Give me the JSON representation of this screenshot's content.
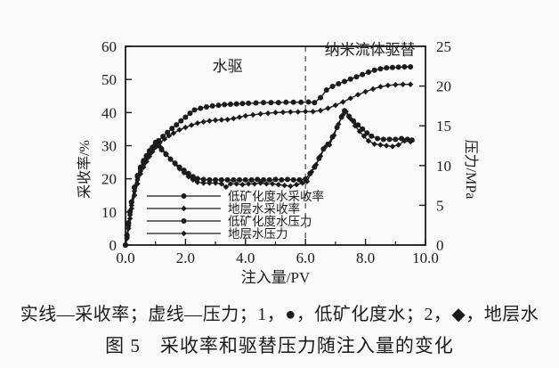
{
  "figure": {
    "note": "实线—采收率；虚线—压力；1，●，低矿化度水；2，◆，地层水",
    "title": "图 5　采收率和驱替压力随注入量的变化"
  },
  "chart_data": {
    "type": "line",
    "title": "",
    "xlabel": "注入量/PV",
    "ylabel_left": "采收率/%",
    "ylabel_right": "压力/MPa",
    "xlim": [
      0,
      10
    ],
    "xtick_values": [
      0,
      2,
      4,
      6,
      8,
      10
    ],
    "xtick_labels": [
      "0.0",
      "2.0",
      "4.0",
      "6.0",
      "8.0",
      "10.0"
    ],
    "xtick_minor": [
      1,
      3,
      5,
      7,
      9
    ],
    "ylim_left": [
      0,
      60
    ],
    "ytick_left": [
      0,
      10,
      20,
      30,
      40,
      50,
      60
    ],
    "ylim_right": [
      0,
      25
    ],
    "ytick_right": [
      0,
      5,
      10,
      15,
      20,
      25
    ],
    "grid": false,
    "ink_color": "#1b1b1b",
    "divider": {
      "x": 6.0,
      "style": "dashed"
    },
    "annotations": [
      {
        "key": "water-flooding",
        "text": "水驱",
        "x": 3.4,
        "y": 52.5
      },
      {
        "key": "nanofluid-displacement",
        "text": "纳米流体驱替",
        "x": 8.15,
        "y": 57.5
      }
    ],
    "legend_position": "inside-lower-left",
    "series": [
      {
        "key": "low-salinity-water-recovery",
        "name": "低矿化度水采收率",
        "axis": "left",
        "marker": "circle",
        "marker_size": 3,
        "x": [
          0,
          0.05,
          0.1,
          0.15,
          0.2,
          0.3,
          0.4,
          0.5,
          0.6,
          0.7,
          0.8,
          0.9,
          1.0,
          1.1,
          1.25,
          1.4,
          1.55,
          1.7,
          1.85,
          2.0,
          2.15,
          2.3,
          2.5,
          2.7,
          2.9,
          3.1,
          3.3,
          3.5,
          3.7,
          3.9,
          4.1,
          4.35,
          4.6,
          4.85,
          5.1,
          5.35,
          5.6,
          5.85,
          6.1,
          6.3,
          6.5,
          6.7,
          6.9,
          7.1,
          7.3,
          7.5,
          7.7,
          7.9,
          8.1,
          8.3,
          8.5,
          8.7,
          8.9,
          9.1,
          9.3,
          9.5
        ],
        "y": [
          0,
          3,
          6.5,
          10,
          13,
          17.5,
          21,
          23.5,
          25.5,
          27,
          28.5,
          29.5,
          30.5,
          31.5,
          32.8,
          34,
          35.2,
          36.3,
          37.5,
          38.6,
          39.8,
          40.8,
          41.3,
          41.7,
          42,
          42.2,
          42.4,
          42.5,
          42.6,
          42.7,
          42.8,
          42.9,
          43,
          43,
          43,
          43.1,
          43.1,
          43.1,
          43.2,
          43,
          44.5,
          46.8,
          47.9,
          48.7,
          49.4,
          50.1,
          50.8,
          51.5,
          52.2,
          52.8,
          53.2,
          53.5,
          53.6,
          53.7,
          53.8,
          53.8
        ]
      },
      {
        "key": "formation-water-recovery",
        "name": "地层水采收率",
        "axis": "left",
        "marker": "diamond",
        "marker_size": 2.8,
        "x": [
          0,
          0.05,
          0.1,
          0.15,
          0.2,
          0.3,
          0.4,
          0.5,
          0.6,
          0.7,
          0.8,
          0.9,
          1.0,
          1.15,
          1.3,
          1.45,
          1.6,
          1.8,
          2.0,
          2.2,
          2.4,
          2.6,
          2.8,
          3.0,
          3.2,
          3.4,
          3.6,
          3.8,
          4.0,
          4.25,
          4.5,
          4.75,
          5.0,
          5.25,
          5.5,
          5.75,
          6.0,
          6.25,
          6.5,
          6.75,
          7.0,
          7.25,
          7.5,
          7.75,
          8.0,
          8.25,
          8.5,
          8.75,
          9.0,
          9.25,
          9.5
        ],
        "y": [
          0,
          2,
          5,
          8,
          11,
          15,
          18.5,
          21.5,
          23.5,
          25.2,
          26.8,
          28.2,
          29.5,
          31,
          32,
          33,
          33.8,
          34.8,
          35.5,
          36.2,
          36.8,
          37.2,
          37.5,
          37.7,
          37.8,
          37.9,
          38.2,
          38.6,
          39,
          39.3,
          39.6,
          39.8,
          40,
          40.1,
          40.2,
          40.2,
          40.3,
          40.3,
          40.6,
          41.3,
          42.2,
          43.2,
          44.3,
          45.4,
          46.3,
          47.1,
          47.8,
          48.2,
          48.4,
          48.5,
          48.5
        ]
      },
      {
        "key": "low-salinity-water-pressure",
        "name": "低矿化度水压力",
        "axis": "right",
        "marker": "circle",
        "marker_size": 3,
        "x": [
          0,
          0.05,
          0.1,
          0.15,
          0.2,
          0.3,
          0.4,
          0.5,
          0.6,
          0.7,
          0.8,
          0.9,
          1.0,
          1.1,
          1.2,
          1.35,
          1.5,
          1.65,
          1.8,
          1.95,
          2.1,
          2.25,
          2.4,
          2.6,
          2.8,
          3.0,
          3.2,
          3.4,
          3.6,
          3.8,
          4.0,
          4.2,
          4.4,
          4.6,
          4.8,
          5.0,
          5.2,
          5.4,
          5.6,
          5.8,
          6.0,
          6.15,
          6.3,
          6.45,
          6.6,
          6.75,
          6.9,
          7.05,
          7.2,
          7.3,
          7.45,
          7.6,
          7.75,
          7.9,
          8.05,
          8.2,
          8.4,
          8.6,
          8.8,
          9.0,
          9.2,
          9.4,
          9.55
        ],
        "y": [
          0,
          1.2,
          2.8,
          4.2,
          5.4,
          7.2,
          8.6,
          9.6,
          10.4,
          11.1,
          11.7,
          12.3,
          12.9,
          12.5,
          12.0,
          11.4,
          10.8,
          10.3,
          9.8,
          9.4,
          9.0,
          8.6,
          8.35,
          8.25,
          8.2,
          8.2,
          8.2,
          8.2,
          8.2,
          8.2,
          8.2,
          8.2,
          8.25,
          8.2,
          8.2,
          8.25,
          8.2,
          8.25,
          8.2,
          8.2,
          8.3,
          9.0,
          9.8,
          10.9,
          12.1,
          12.7,
          13.6,
          14.8,
          16.1,
          16.9,
          16.2,
          15.6,
          15.1,
          14.6,
          14.1,
          13.7,
          13.4,
          13.3,
          13.3,
          13.3,
          13.4,
          13.3,
          13.2
        ]
      },
      {
        "key": "formation-water-pressure",
        "name": "地层水压力",
        "axis": "right",
        "marker": "diamond",
        "marker_size": 2.8,
        "x": [
          0,
          0.05,
          0.1,
          0.15,
          0.2,
          0.3,
          0.4,
          0.5,
          0.6,
          0.7,
          0.8,
          0.9,
          1.0,
          1.1,
          1.2,
          1.35,
          1.5,
          1.65,
          1.8,
          1.95,
          2.1,
          2.25,
          2.4,
          2.6,
          2.8,
          3.0,
          3.2,
          3.35,
          3.5,
          3.7,
          3.9,
          4.1,
          4.3,
          4.5,
          4.7,
          4.9,
          5.1,
          5.3,
          5.5,
          5.7,
          5.9,
          6.05,
          6.2,
          6.35,
          6.5,
          6.65,
          6.8,
          6.95,
          7.1,
          7.25,
          7.35,
          7.5,
          7.65,
          7.8,
          7.95,
          8.1,
          8.3,
          8.5,
          8.7,
          8.9,
          9.1,
          9.3,
          9.5
        ],
        "y": [
          0,
          1.0,
          2.4,
          3.8,
          5.0,
          6.8,
          8.2,
          9.3,
          10.1,
          10.8,
          11.4,
          12.0,
          12.5,
          12.7,
          12.2,
          11.5,
          10.8,
          10.2,
          9.6,
          9.1,
          8.6,
          8.2,
          7.9,
          7.8,
          7.8,
          7.8,
          7.7,
          7.3,
          7.7,
          7.7,
          7.6,
          7.7,
          7.7,
          7.8,
          7.7,
          7.7,
          7.6,
          7.5,
          7.4,
          7.6,
          7.8,
          8.0,
          9.2,
          10.1,
          11.2,
          12.3,
          12.6,
          13.8,
          15.2,
          16.4,
          16.8,
          15.9,
          15.0,
          14.3,
          13.7,
          13.1,
          12.7,
          12.6,
          12.5,
          12.4,
          12.6,
          13.1,
          13.0
        ]
      }
    ]
  }
}
